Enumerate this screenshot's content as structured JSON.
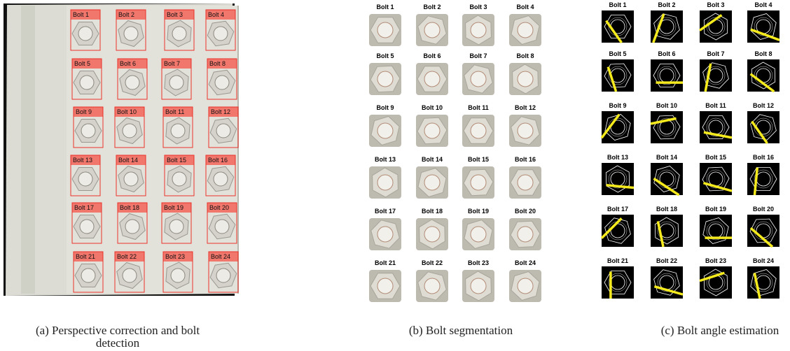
{
  "panels": [
    {
      "caption": "(a) Perspective correction and bolt detection",
      "labels": [
        "Bolt 1",
        "Bolt 2",
        "Bolt 3",
        "Bolt 4",
        "Bolt 5",
        "Bolt 6",
        "Bolt 7",
        "Bolt 8",
        "Bolt 9",
        "Bolt 10",
        "Bolt 11",
        "Bolt 12",
        "Bolt 13",
        "Bolt 14",
        "Bolt 15",
        "Bolt 16",
        "Bolt 17",
        "Bolt 18",
        "Bolt 19",
        "Bolt 20",
        "Bolt 21",
        "Bolt 22",
        "Bolt 23",
        "Bolt 24"
      ]
    },
    {
      "caption": "(b) Bolt segmentation",
      "labels": [
        "Bolt 1",
        "Bolt 2",
        "Bolt 3",
        "Bolt 4",
        "Bolt 5",
        "Bolt 6",
        "Bolt 7",
        "Bolt 8",
        "Bolt 9",
        "Bolt 10",
        "Bolt 11",
        "Bolt 12",
        "Bolt 13",
        "Bolt 14",
        "Bolt 15",
        "Bolt 16",
        "Bolt 17",
        "Bolt 18",
        "Bolt 19",
        "Bolt 20",
        "Bolt 21",
        "Bolt 22",
        "Bolt 23",
        "Bolt 24"
      ]
    },
    {
      "caption": "(c) Bolt angle estimation",
      "labels": [
        "Bolt 1",
        "Bolt 2",
        "Bolt 3",
        "Bolt 4",
        "Bolt 5",
        "Bolt 6",
        "Bolt 7",
        "Bolt 8",
        "Bolt 9",
        "Bolt 10",
        "Bolt 11",
        "Bolt 12",
        "Bolt 13",
        "Bolt 14",
        "Bolt 15",
        "Bolt 16",
        "Bolt 17",
        "Bolt 18",
        "Bolt 19",
        "Bolt 20",
        "Bolt 21",
        "Bolt 22",
        "Bolt 23",
        "Bolt 24"
      ]
    }
  ]
}
